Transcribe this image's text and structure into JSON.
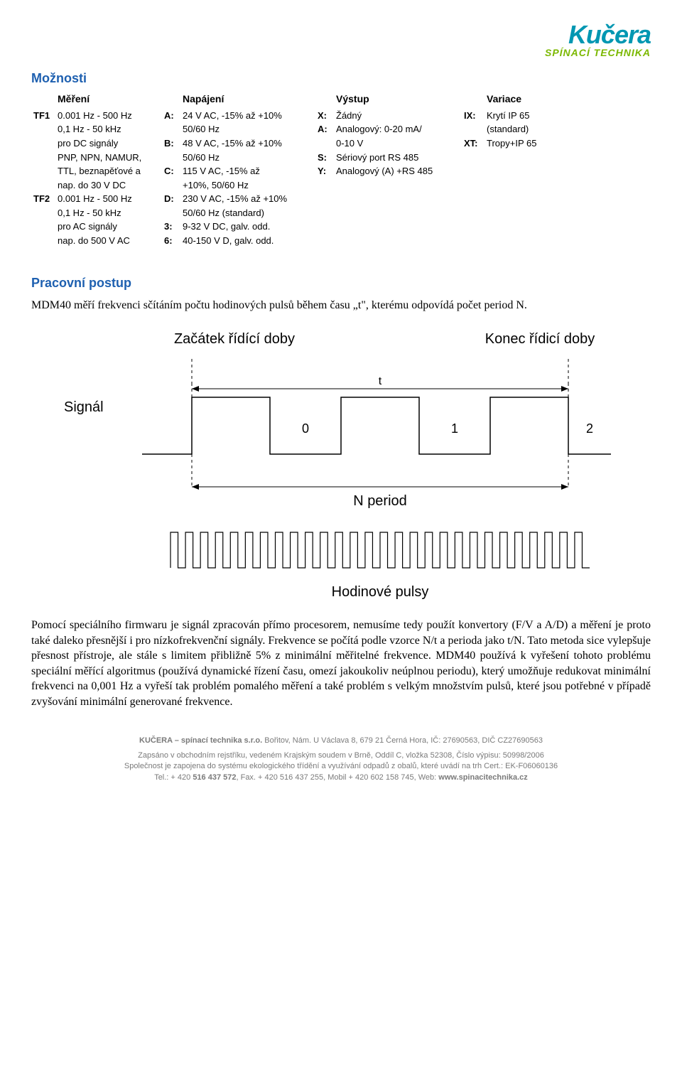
{
  "logo": {
    "text": "Kučera",
    "subtitle": "SPÍNACÍ TECHNIKA",
    "brand_color": "#0097b2",
    "subtitle_color": "#7bb800"
  },
  "section1_title": "Možnosti",
  "headers": {
    "mereni": "Měření",
    "napajeni": "Napájení",
    "vystup": "Výstup",
    "variace": "Variace"
  },
  "mereni": {
    "tf1_code": "TF1",
    "tf1_line1": "0.001 Hz - 500 Hz",
    "tf1_line2": "0,1 Hz - 50 kHz",
    "tf1_line3": "pro DC signály",
    "tf1_line4": "PNP, NPN, NAMUR,",
    "tf1_line5": "TTL, beznapěťové a",
    "tf1_line6": "nap. do 30 V DC",
    "tf2_code": "TF2",
    "tf2_line1": "0.001 Hz - 500 Hz",
    "tf2_line2": "0,1 Hz - 50 kHz",
    "tf2_line3": "pro AC signály",
    "tf2_line4": "nap. do 500 V AC"
  },
  "napajeni": {
    "a_key": "A:",
    "a_line1": "24 V AC, -15% až +10%",
    "a_line2": "50/60 Hz",
    "b_key": "B:",
    "b_line1": "48 V AC, -15% až +10%",
    "b_line2": "50/60 Hz",
    "c_key": "C:",
    "c_line1": "115 V AC, -15% až",
    "c_line2": "+10%, 50/60 Hz",
    "d_key": "D:",
    "d_line1": "230 V AC, -15% až +10%",
    "d_line2": "50/60 Hz (standard)",
    "k3_key": "3:",
    "k3_line1": "9-32 V DC, galv. odd.",
    "k6_key": "6:",
    "k6_line1": "40-150 V D, galv. odd."
  },
  "vystup": {
    "x_key": "X:",
    "x_line1": "Žádný",
    "a_key": "A:",
    "a_line1": "Analogový: 0-20 mA/",
    "a_line2": "0-10 V",
    "s_key": "S:",
    "s_line1": "Sériový port RS 485",
    "y_key": "Y:",
    "y_line1": "Analogový (A) +RS 485"
  },
  "variace": {
    "ix_key": "IX:",
    "ix_line1": "Krytí IP 65",
    "ix_line2": "(standard)",
    "xt_key": "XT:",
    "xt_line1": "Tropy+IP 65"
  },
  "section2_title": "Pracovní postup",
  "paragraph1": "MDM40 měří frekvenci sčítáním počtu hodinových pulsů během času „t\", kterému odpovídá počet period N.",
  "diagram": {
    "label_start": "Začátek řídící doby",
    "label_end": "Konec řídicí doby",
    "label_signal": "Signál",
    "label_t": "t",
    "label_0": "0",
    "label_1": "1",
    "label_2": "2",
    "label_nperiod": "N period",
    "label_clock": "Hodinové pulsy",
    "stroke": "#000000",
    "stroke_width": 1.5
  },
  "paragraph2": "Pomocí speciálního firmwaru je signál zpracován přímo procesorem, nemusíme tedy použít konvertory (F/V a A/D) a měření je proto také daleko přesnější i pro nízkofrekvenční signály. Frekvence se počítá podle vzorce N/t a perioda jako t/N. Tato metoda sice vylepšuje přesnost přístroje, ale stále s limitem přibližně 5% z minimální měřitelné frekvence. MDM40 používá k vyřešení tohoto problému speciální měřící algoritmus (používá dynamické řízení času, omezí jakoukoliv neúplnou periodu), který umožňuje redukovat minimální frekvenci na 0,001 Hz a vyřeší tak problém pomalého měření a také problém s velkým množstvím pulsů, které jsou potřebné v případě zvyšování minimální generované frekvence.",
  "footer": {
    "line1a": "KUČERA – spínací technika s.r.o.",
    "line1b": "  Bořitov, Nám. U Václava 8, 679 21 Černá Hora, IČ: 27690563, DIČ CZ27690563",
    "line2": "Zapsáno v obchodním rejstříku, vedeném Krajským soudem v Brně, Oddíl C, vložka 52308, Číslo výpisu: 50998/2006",
    "line3": "Společnost je zapojena do systému ekologického třídění a využívání odpadů z obalů, které uvádí na trh Cert.: EK-F06060136",
    "line4a": "Tel.: + 420 ",
    "line4b": "516 437 572",
    "line4c": ", Fax. + 420 516 437 255, Mobil + 420 602 158 745, Web: ",
    "line4d": "www.spinacitechnika.cz"
  }
}
